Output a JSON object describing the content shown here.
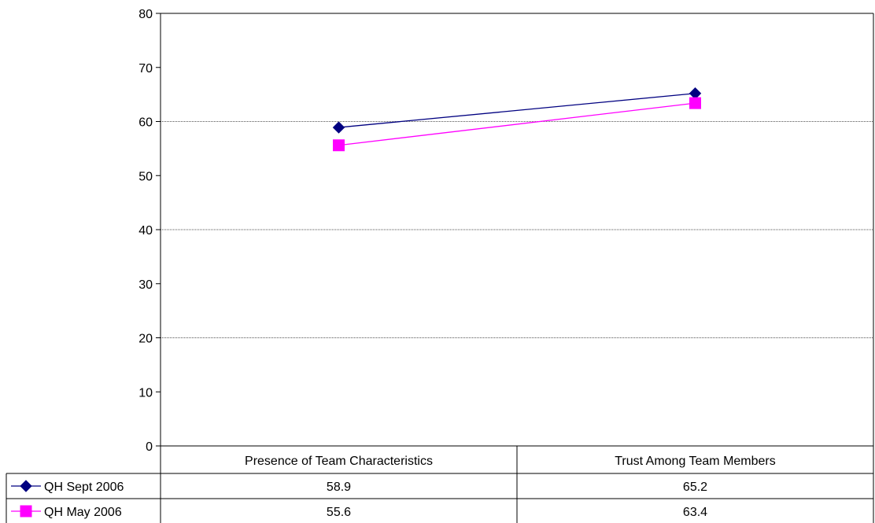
{
  "chart_data": {
    "type": "line",
    "categories": [
      "Presence of Team Characteristics",
      "Trust Among Team Members"
    ],
    "series": [
      {
        "name": "QH Sept 2006",
        "values": [
          58.9,
          65.2
        ],
        "color": "#000080",
        "marker": "diamond"
      },
      {
        "name": "QH May 2006",
        "values": [
          55.6,
          63.4
        ],
        "color": "#ff00ff",
        "marker": "square"
      }
    ],
    "ylim": [
      0,
      80
    ],
    "yticks": [
      0,
      10,
      20,
      30,
      40,
      50,
      60,
      70,
      80
    ],
    "gridlines": [
      20,
      40,
      60
    ],
    "data_table": {
      "rows": [
        {
          "label": "QH Sept 2006",
          "cells": [
            "58.9",
            "65.2"
          ]
        },
        {
          "label": "QH May 2006",
          "cells": [
            "55.6",
            "63.4"
          ]
        }
      ]
    }
  }
}
